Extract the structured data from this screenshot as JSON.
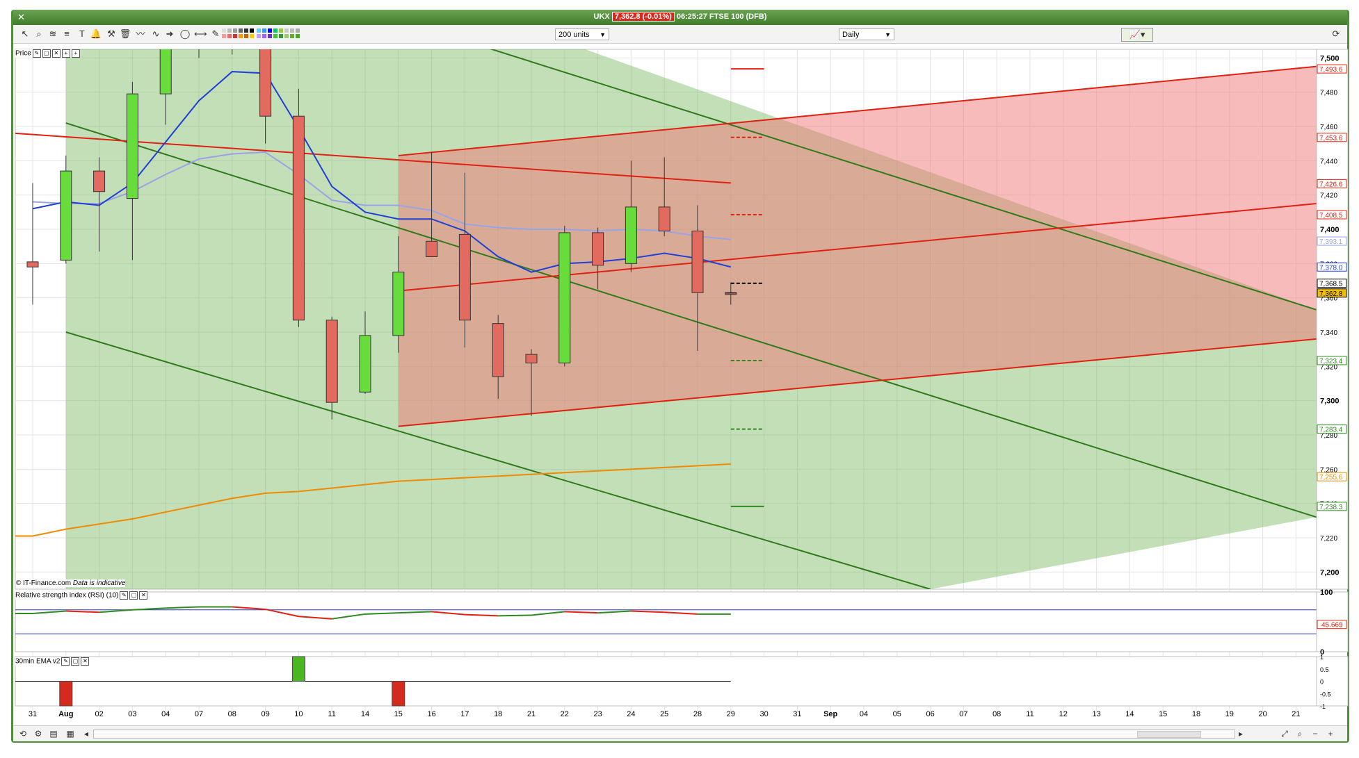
{
  "window": {
    "close_label": "✕",
    "instrument": "UKX",
    "price_badge": "7,362.8 (-0.01%)",
    "time_text": "06:25:27 FTSE 100 (DFB)"
  },
  "toolbar": {
    "units_select": "200 units",
    "interval_select": "Daily",
    "tools": [
      "cursor-icon",
      "zoom-icon",
      "fib-icon",
      "raff-icon",
      "text-icon",
      "alert-icon",
      "tools-icon",
      "trash-icon",
      "trend-icon",
      "wave-icon",
      "arrow-icon",
      "ellipse-icon",
      "hline-icon",
      "pencil-icon"
    ]
  },
  "panels": {
    "price": {
      "label": "Price"
    },
    "rsi": {
      "label": "Relative strength index (RSI) (10)",
      "value_label": "45.669"
    },
    "ema": {
      "label": "30min EMA v2"
    }
  },
  "footer": {
    "copyright": "© IT-Finance.com",
    "note": "Data is indicative"
  },
  "chart_data": {
    "type": "candlestick",
    "y_axis_ticks": [
      "7,500",
      "7,480",
      "7,460",
      "7,440",
      "7,420",
      "7,400",
      "7,380",
      "7,360",
      "7,340",
      "7,320",
      "7,300",
      "7,280",
      "7,260",
      "7,240",
      "7,220",
      "7,200"
    ],
    "ylim": [
      7190,
      7505
    ],
    "x_tick_labels": [
      "31",
      "Aug",
      "02",
      "03",
      "04",
      "07",
      "08",
      "09",
      "10",
      "11",
      "14",
      "15",
      "16",
      "17",
      "18",
      "21",
      "22",
      "23",
      "24",
      "25",
      "28",
      "29",
      "30",
      "31",
      "Sep",
      "04",
      "05",
      "06",
      "07",
      "08",
      "11",
      "12",
      "13",
      "14",
      "15",
      "18",
      "19",
      "20",
      "21"
    ],
    "candles": [
      {
        "date": "31",
        "open": 7381,
        "high": 7427,
        "low": 7356,
        "close": 7378
      },
      {
        "date": "Aug",
        "open": 7382,
        "high": 7443,
        "low": 7380,
        "close": 7434
      },
      {
        "date": "02",
        "open": 7434,
        "high": 7442,
        "low": 7387,
        "close": 7422
      },
      {
        "date": "03",
        "open": 7418,
        "high": 7486,
        "low": 7382,
        "close": 7479
      },
      {
        "date": "04",
        "open": 7479,
        "high": 7512,
        "low": 7461,
        "close": 7510
      },
      {
        "date": "07",
        "open": 7510,
        "high": 7518,
        "low": 7500,
        "close": 7514
      },
      {
        "date": "08",
        "open": 7514,
        "high": 7520,
        "low": 7502,
        "close": 7512
      },
      {
        "date": "09",
        "open": 7511,
        "high": 7516,
        "low": 7450,
        "close": 7466
      },
      {
        "date": "10",
        "open": 7466,
        "high": 7482,
        "low": 7343,
        "close": 7347
      },
      {
        "date": "11",
        "open": 7347,
        "high": 7349,
        "low": 7289,
        "close": 7299
      },
      {
        "date": "14",
        "open": 7305,
        "high": 7352,
        "low": 7304,
        "close": 7338
      },
      {
        "date": "15",
        "open": 7338,
        "high": 7396,
        "low": 7328,
        "close": 7375
      },
      {
        "date": "16",
        "open": 7393,
        "high": 7445,
        "low": 7386,
        "close": 7384
      },
      {
        "date": "17",
        "open": 7397,
        "high": 7433,
        "low": 7331,
        "close": 7347
      },
      {
        "date": "18",
        "open": 7345,
        "high": 7350,
        "low": 7301,
        "close": 7314
      },
      {
        "date": "21",
        "open": 7327,
        "high": 7330,
        "low": 7291,
        "close": 7322
      },
      {
        "date": "22",
        "open": 7322,
        "high": 7402,
        "low": 7320,
        "close": 7398
      },
      {
        "date": "23",
        "open": 7398,
        "high": 7401,
        "low": 7365,
        "close": 7379
      },
      {
        "date": "24",
        "open": 7380,
        "high": 7440,
        "low": 7375,
        "close": 7413
      },
      {
        "date": "25",
        "open": 7413,
        "high": 7442,
        "low": 7396,
        "close": 7399
      },
      {
        "date": "28",
        "open": 7399,
        "high": 7414,
        "low": 7329,
        "close": 7363
      },
      {
        "date": "29",
        "open": 7363,
        "high": 7369,
        "low": 7356,
        "close": 7362
      }
    ],
    "series": [
      {
        "name": "",
        "color": "#1f3fd6"
      },
      {
        "name": "",
        "color": "#9aa3e8"
      },
      {
        "name": "",
        "color": "#f08a00"
      }
    ],
    "price_labels": [
      {
        "text": "7,493.6",
        "color": "#e02010"
      },
      {
        "text": "7,453.6",
        "color": "#e02010"
      },
      {
        "text": "7,426.6",
        "color": "#e02010"
      },
      {
        "text": "7,408.5",
        "color": "#e02010"
      },
      {
        "text": "7,393.1",
        "color": "#9aa3e8"
      },
      {
        "text": "7,378.0",
        "color": "#1f3fd6"
      },
      {
        "text": "7,368.5",
        "color": "#000000"
      },
      {
        "text": "7,362.8",
        "color": "#000000"
      },
      {
        "text": "7,323.4",
        "color": "#2f8a1e"
      },
      {
        "text": "7,283.4",
        "color": "#2f8a1e"
      },
      {
        "text": "7,255.6",
        "color": "#f08a00"
      },
      {
        "text": "7,238.3",
        "color": "#2f8a1e"
      }
    ],
    "rsi": {
      "ticks": [
        "100",
        "0"
      ],
      "upper_level": 70,
      "lower_level": 30,
      "values": [
        64,
        68,
        66,
        70,
        73,
        75,
        75,
        71,
        59,
        55,
        63,
        65,
        67,
        62,
        60,
        61,
        67,
        65,
        68,
        66,
        63,
        63
      ]
    },
    "ema_panel": {
      "ticks": [
        "1",
        "0.5",
        "0",
        "-0.5",
        "-1"
      ],
      "bars": [
        {
          "date": "Aug",
          "value": -1
        },
        {
          "date": "10",
          "value": 1
        },
        {
          "date": "15",
          "value": -1
        }
      ]
    }
  }
}
